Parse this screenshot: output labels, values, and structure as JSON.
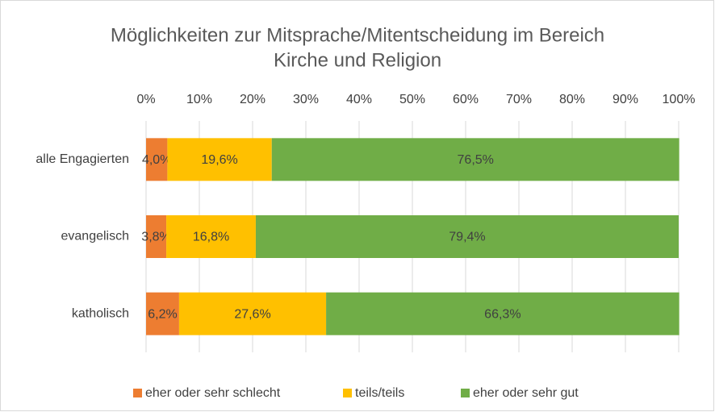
{
  "chart_data": {
    "type": "stacked-bar-horizontal",
    "title": [
      "Möglichkeiten zur Mitsprache/Mitentscheidung im Bereich",
      "Kirche und Religion"
    ],
    "categories": [
      "alle Engagierten",
      "evangelisch",
      "katholisch"
    ],
    "series": [
      {
        "name": "eher oder sehr schlecht",
        "color": "#ed7d31",
        "values": [
          4.0,
          3.8,
          6.2
        ],
        "value_labels": [
          "4,0%",
          "3,8%",
          "6,2%"
        ]
      },
      {
        "name": "teils/teils",
        "color": "#ffc000",
        "values": [
          19.6,
          16.8,
          27.6
        ],
        "value_labels": [
          "19,6%",
          "16,8%",
          "27,6%"
        ]
      },
      {
        "name": "eher oder sehr gut",
        "color": "#70ad47",
        "values": [
          76.5,
          79.4,
          66.3
        ],
        "value_labels": [
          "76,5%",
          "79,4%",
          "66,3%"
        ]
      }
    ],
    "xlim": [
      0,
      100
    ],
    "xticks": [
      {
        "value": 0,
        "label": "0%"
      },
      {
        "value": 10,
        "label": "10%"
      },
      {
        "value": 20,
        "label": "20%"
      },
      {
        "value": 30,
        "label": "30%"
      },
      {
        "value": 40,
        "label": "40%"
      },
      {
        "value": 50,
        "label": "50%"
      },
      {
        "value": 60,
        "label": "60%"
      },
      {
        "value": 70,
        "label": "70%"
      },
      {
        "value": 80,
        "label": "80%"
      },
      {
        "value": 90,
        "label": "90%"
      },
      {
        "value": 100,
        "label": "100%"
      }
    ],
    "grid": true,
    "legend": "bottom"
  }
}
